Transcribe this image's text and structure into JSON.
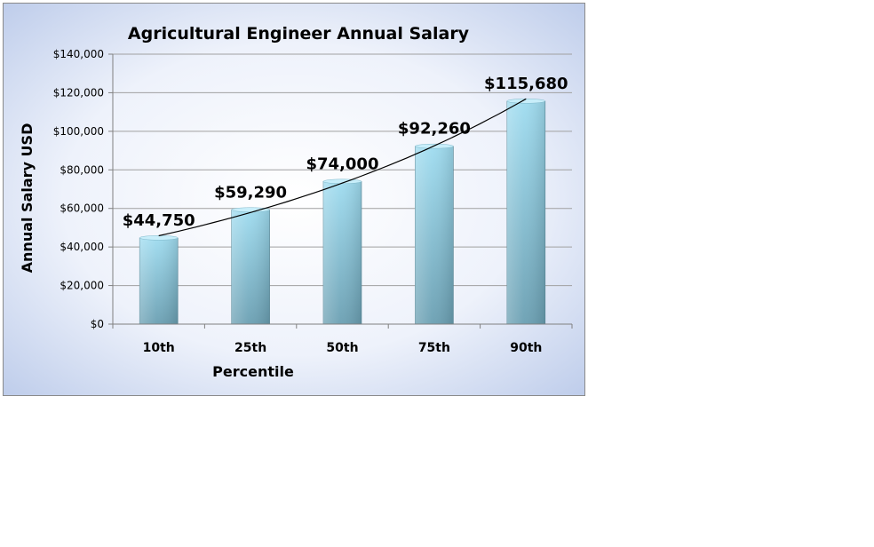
{
  "chart_data": {
    "type": "bar",
    "title": "Agricultural Engineer Annual Salary",
    "xlabel": "Percentile",
    "ylabel": "Annual Salary USD",
    "categories": [
      "10th",
      "25th",
      "50th",
      "75th",
      "90th"
    ],
    "values": [
      44750,
      59290,
      74000,
      92260,
      115680
    ],
    "data_labels": [
      "$44,750",
      "$59,290",
      "$74,000",
      "$92,260",
      "$115,680"
    ],
    "yticks": [
      0,
      20000,
      40000,
      60000,
      80000,
      100000,
      120000,
      140000
    ],
    "ytick_labels": [
      "$0",
      "$20,000",
      "$40,000",
      "$60,000",
      "$80,000",
      "$100,000",
      "$120,000",
      "$140,000"
    ],
    "ylim": [
      0,
      140000
    ],
    "grid": true,
    "trendline": true,
    "legend": "none",
    "colors": {
      "bar_top": "#9fdcf0",
      "bar_bottom": "#6a9fb2",
      "background_outer": "#c6d3ee",
      "background_inner": "#ffffff",
      "gridline": "#a0a0a0",
      "text": "#000000"
    }
  }
}
